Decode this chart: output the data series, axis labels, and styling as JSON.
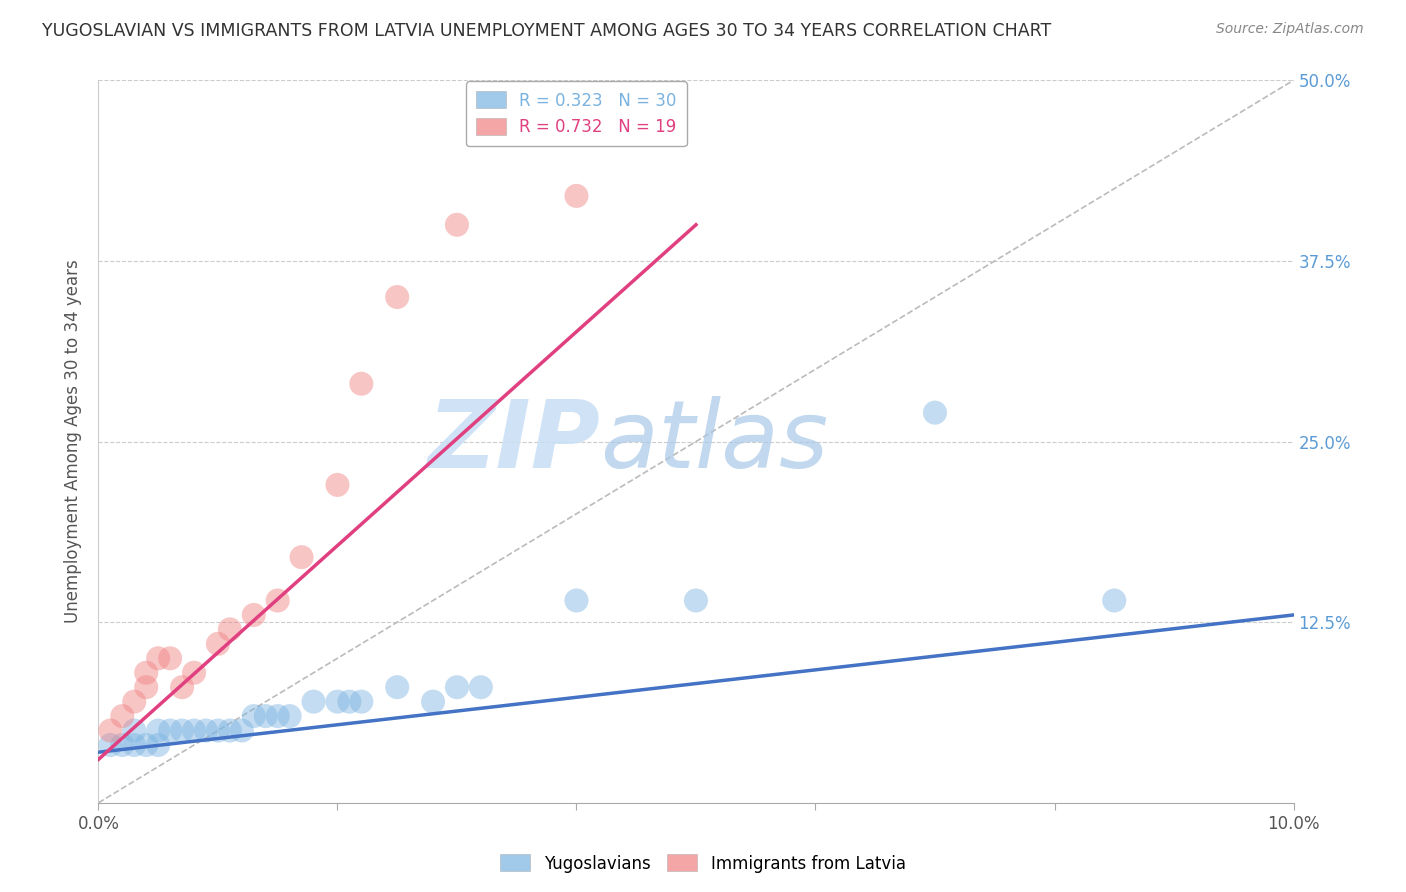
{
  "title": "YUGOSLAVIAN VS IMMIGRANTS FROM LATVIA UNEMPLOYMENT AMONG AGES 30 TO 34 YEARS CORRELATION CHART",
  "source": "Source: ZipAtlas.com",
  "xlim": [
    0.0,
    0.1
  ],
  "ylim": [
    0.0,
    0.5
  ],
  "ylabel": "Unemployment Among Ages 30 to 34 years",
  "legend1_label": "R = 0.323   N = 30",
  "legend2_label": "R = 0.732   N = 19",
  "blue_color": "#7ab3e0",
  "pink_color": "#f08080",
  "blue_trend_color": "#4472c4",
  "pink_trend_color": "#e04080",
  "watermark_zip": "ZIP",
  "watermark_atlas": "atlas",
  "ytick_vals": [
    0.0,
    0.125,
    0.25,
    0.375,
    0.5
  ],
  "ytick_labels": [
    "",
    "12.5%",
    "25.0%",
    "37.5%",
    "50.0%"
  ],
  "xtick_vals": [
    0.0,
    0.02,
    0.04,
    0.06,
    0.08,
    0.1
  ],
  "yugoslavian_x": [
    0.001,
    0.002,
    0.003,
    0.003,
    0.004,
    0.005,
    0.005,
    0.006,
    0.007,
    0.008,
    0.009,
    0.01,
    0.011,
    0.012,
    0.013,
    0.014,
    0.015,
    0.016,
    0.018,
    0.02,
    0.021,
    0.022,
    0.025,
    0.028,
    0.03,
    0.032,
    0.04,
    0.05,
    0.07,
    0.085
  ],
  "yugoslavian_y": [
    0.04,
    0.04,
    0.04,
    0.05,
    0.04,
    0.04,
    0.05,
    0.05,
    0.05,
    0.05,
    0.05,
    0.05,
    0.05,
    0.05,
    0.06,
    0.06,
    0.06,
    0.06,
    0.07,
    0.07,
    0.07,
    0.07,
    0.08,
    0.07,
    0.08,
    0.08,
    0.14,
    0.14,
    0.27,
    0.14
  ],
  "latvia_x": [
    0.001,
    0.002,
    0.003,
    0.004,
    0.004,
    0.005,
    0.006,
    0.007,
    0.008,
    0.01,
    0.011,
    0.013,
    0.015,
    0.017,
    0.02,
    0.022,
    0.025,
    0.03,
    0.04
  ],
  "latvia_y": [
    0.05,
    0.06,
    0.07,
    0.08,
    0.09,
    0.1,
    0.1,
    0.08,
    0.09,
    0.11,
    0.12,
    0.13,
    0.14,
    0.17,
    0.22,
    0.29,
    0.35,
    0.4,
    0.42
  ],
  "blue_trend_x": [
    0.0,
    0.1
  ],
  "blue_trend_y": [
    0.035,
    0.13
  ],
  "pink_trend_x": [
    0.0,
    0.05
  ],
  "pink_trend_y": [
    0.03,
    0.4
  ],
  "diag_line_x": [
    0.0,
    0.1
  ],
  "diag_line_y": [
    0.0,
    0.5
  ]
}
